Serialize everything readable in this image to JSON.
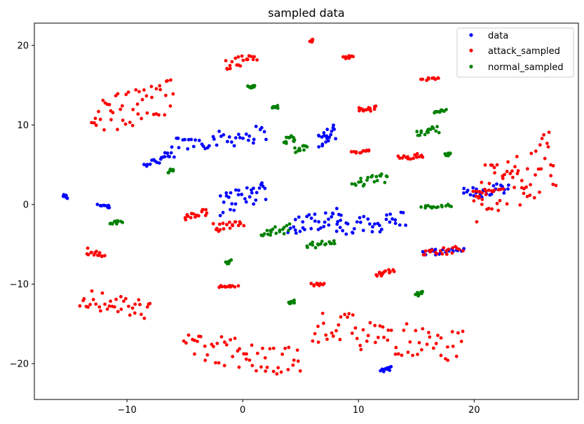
{
  "chart_data": {
    "type": "scatter",
    "title": "sampled data",
    "xlabel": "",
    "ylabel": "",
    "xlim": [
      -18.0,
      29.0
    ],
    "ylim": [
      -24.5,
      22.8
    ],
    "xticks": [
      -10,
      0,
      10,
      20
    ],
    "yticks": [
      -20,
      -10,
      0,
      10,
      20
    ],
    "grid": false,
    "legend_position": "top-right",
    "series": [
      {
        "name": "data",
        "color": "#0000ff",
        "clusters": [
          {
            "x": [
              -15.5,
              -15.2
            ],
            "y": [
              1.3,
              0.8
            ]
          },
          {
            "x": [
              -12.5,
              -11.5
            ],
            "y": [
              0.0,
              -0.4
            ]
          },
          {
            "x": [
              -8.5,
              -6.0
            ],
            "y": [
              4.5,
              6.8
            ]
          },
          {
            "x": [
              -6.0,
              2.0
            ],
            "y": [
              6.5,
              10.0
            ]
          },
          {
            "x": [
              -2.0,
              2.0
            ],
            "y": [
              -1.5,
              3.5
            ]
          },
          {
            "x": [
              4.0,
              8.5
            ],
            "y": [
              -4.0,
              0.0
            ]
          },
          {
            "x": [
              8.0,
              14.0
            ],
            "y": [
              -4.5,
              -0.5
            ]
          },
          {
            "x": [
              6.5,
              8.0
            ],
            "y": [
              7.0,
              10.0
            ]
          },
          {
            "x": [
              19.0,
              23.0
            ],
            "y": [
              0.5,
              3.0
            ]
          },
          {
            "x": [
              15.5,
              19.0
            ],
            "y": [
              -6.5,
              -5.2
            ]
          },
          {
            "x": [
              12.0,
              12.8
            ],
            "y": [
              -21.0,
              -20.3
            ]
          }
        ]
      },
      {
        "name": "attack_sampled",
        "color": "#ff0000",
        "clusters": [
          {
            "x": [
              -1.5,
              1.2
            ],
            "y": [
              17.0,
              19.2
            ]
          },
          {
            "x": [
              5.9,
              6.0
            ],
            "y": [
              20.5,
              20.7
            ]
          },
          {
            "x": [
              8.8,
              9.5
            ],
            "y": [
              18.3,
              18.8
            ]
          },
          {
            "x": [
              15.5,
              17.0
            ],
            "y": [
              15.7,
              15.9
            ]
          },
          {
            "x": [
              10.0,
              11.5
            ],
            "y": [
              11.5,
              12.5
            ]
          },
          {
            "x": [
              9.5,
              11.0
            ],
            "y": [
              6.4,
              6.9
            ]
          },
          {
            "x": [
              13.5,
              15.5
            ],
            "y": [
              5.5,
              6.5
            ]
          },
          {
            "x": [
              20.0,
              22.5
            ],
            "y": [
              1.5,
              2.0
            ]
          },
          {
            "x": [
              -5.0,
              -3.0
            ],
            "y": [
              -2.2,
              -0.5
            ]
          },
          {
            "x": [
              -2.5,
              0.0
            ],
            "y": [
              -3.5,
              -1.5
            ]
          },
          {
            "x": [
              15.5,
              19.0
            ],
            "y": [
              -6.5,
              -5.2
            ]
          },
          {
            "x": [
              11.5,
              13.0
            ],
            "y": [
              -9.0,
              -8.0
            ]
          },
          {
            "x": [
              6.0,
              7.0
            ],
            "y": [
              -10.4,
              -9.7
            ]
          },
          {
            "x": [
              -2.0,
              -0.5
            ],
            "y": [
              -10.4,
              -10.2
            ]
          },
          {
            "x": [
              -13.5,
              -12.0
            ],
            "y": [
              -5.5,
              -6.8
            ]
          },
          {
            "x": [
              -14.0,
              -8.0
            ],
            "y": [
              -10.5,
              -14.5
            ]
          },
          {
            "x": [
              -5.0,
              5.0
            ],
            "y": [
              -15.8,
              -22.0
            ]
          },
          {
            "x": [
              6.0,
              19.0
            ],
            "y": [
              -13.0,
              -20.3
            ]
          },
          {
            "x": [
              20.0,
              27.0
            ],
            "y": [
              -3.0,
              9.5
            ]
          },
          {
            "x": [
              -13.0,
              -6.0
            ],
            "y": [
              8.5,
              16.0
            ]
          }
        ]
      },
      {
        "name": "normal_sampled",
        "color": "#008000",
        "clusters": [
          {
            "x": [
              3.5,
              4.5
            ],
            "y": [
              7.5,
              9.0
            ]
          },
          {
            "x": [
              4.5,
              5.5
            ],
            "y": [
              6.5,
              7.5
            ]
          },
          {
            "x": [
              15.0,
              17.0
            ],
            "y": [
              8.5,
              9.8
            ]
          },
          {
            "x": [
              17.5,
              18.0
            ],
            "y": [
              6.0,
              6.5
            ]
          },
          {
            "x": [
              16.5,
              17.5
            ],
            "y": [
              11.5,
              12.0
            ]
          },
          {
            "x": [
              9.5,
              12.5
            ],
            "y": [
              2.0,
              4.0
            ]
          },
          {
            "x": [
              15.5,
              18.0
            ],
            "y": [
              -0.5,
              0.0
            ]
          },
          {
            "x": [
              1.5,
              4.0
            ],
            "y": [
              -4.5,
              -2.5
            ]
          },
          {
            "x": [
              5.5,
              8.0
            ],
            "y": [
              -5.5,
              -4.5
            ]
          },
          {
            "x": [
              -1.5,
              -1.0
            ],
            "y": [
              -7.5,
              -7.0
            ]
          },
          {
            "x": [
              4.0,
              4.5
            ],
            "y": [
              -12.5,
              -12.0
            ]
          },
          {
            "x": [
              15.0,
              15.5
            ],
            "y": [
              -11.5,
              -11.0
            ]
          },
          {
            "x": [
              -11.5,
              -10.5
            ],
            "y": [
              -2.5,
              -2.0
            ]
          },
          {
            "x": [
              -6.5,
              -6.0
            ],
            "y": [
              4.0,
              4.5
            ]
          },
          {
            "x": [
              0.5,
              1.0
            ],
            "y": [
              14.5,
              15.0
            ]
          },
          {
            "x": [
              2.5,
              3.0
            ],
            "y": [
              12.0,
              12.5
            ]
          }
        ]
      }
    ]
  }
}
